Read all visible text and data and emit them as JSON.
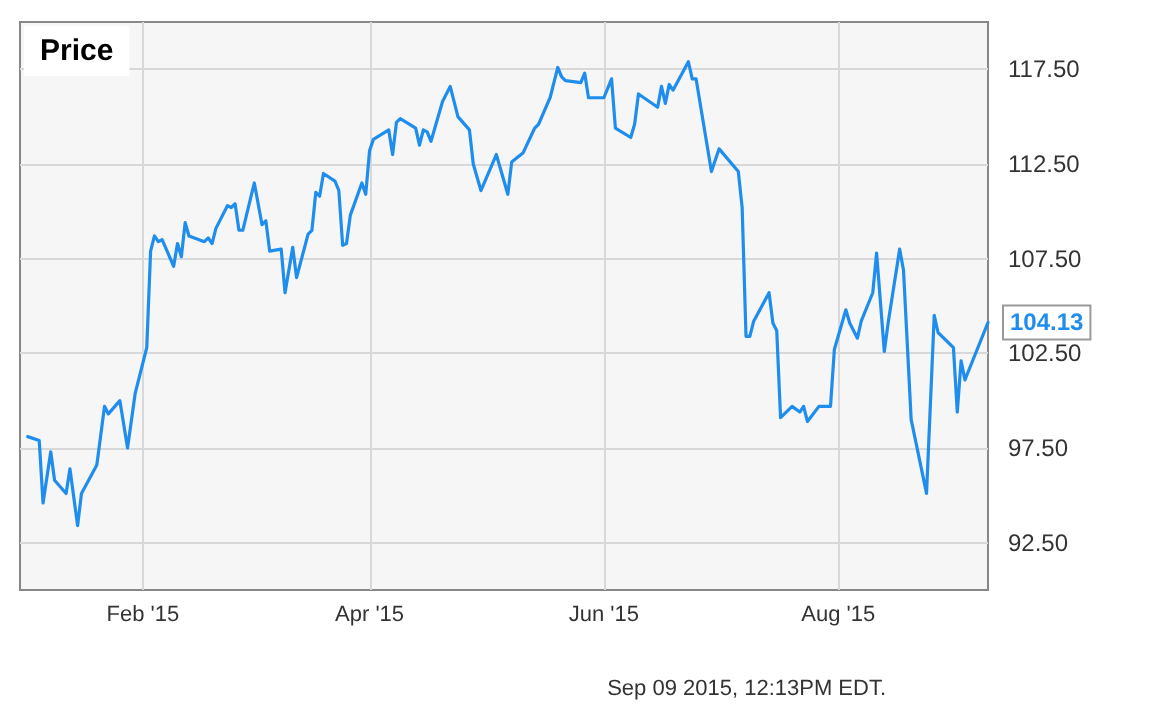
{
  "chart_data": {
    "type": "line",
    "title": "Price",
    "x": [
      "2015-01-02",
      "2015-01-05",
      "2015-01-06",
      "2015-01-08",
      "2015-01-09",
      "2015-01-12",
      "2015-01-13",
      "2015-01-15",
      "2015-01-16",
      "2015-01-20",
      "2015-01-22",
      "2015-01-23",
      "2015-01-26",
      "2015-01-28",
      "2015-01-30",
      "2015-02-02",
      "2015-02-03",
      "2015-02-04",
      "2015-02-05",
      "2015-02-06",
      "2015-02-09",
      "2015-02-10",
      "2015-02-11",
      "2015-02-12",
      "2015-02-13",
      "2015-02-17",
      "2015-02-18",
      "2015-02-19",
      "2015-02-20",
      "2015-02-23",
      "2015-02-24",
      "2015-02-25",
      "2015-02-26",
      "2015-02-27",
      "2015-03-02",
      "2015-03-04",
      "2015-03-05",
      "2015-03-06",
      "2015-03-09",
      "2015-03-10",
      "2015-03-12",
      "2015-03-13",
      "2015-03-16",
      "2015-03-17",
      "2015-03-18",
      "2015-03-19",
      "2015-03-20",
      "2015-03-23",
      "2015-03-24",
      "2015-03-25",
      "2015-03-26",
      "2015-03-27",
      "2015-03-30",
      "2015-03-31",
      "2015-04-01",
      "2015-04-02",
      "2015-04-06",
      "2015-04-07",
      "2015-04-08",
      "2015-04-09",
      "2015-04-13",
      "2015-04-14",
      "2015-04-15",
      "2015-04-16",
      "2015-04-17",
      "2015-04-20",
      "2015-04-22",
      "2015-04-24",
      "2015-04-27",
      "2015-04-28",
      "2015-04-30",
      "2015-05-04",
      "2015-05-07",
      "2015-05-08",
      "2015-05-11",
      "2015-05-14",
      "2015-05-15",
      "2015-05-18",
      "2015-05-20",
      "2015-05-21",
      "2015-05-22",
      "2015-05-26",
      "2015-05-27",
      "2015-05-28",
      "2015-06-01",
      "2015-06-03",
      "2015-06-04",
      "2015-06-08",
      "2015-06-09",
      "2015-06-10",
      "2015-06-15",
      "2015-06-16",
      "2015-06-17",
      "2015-06-18",
      "2015-06-19",
      "2015-06-23",
      "2015-06-24",
      "2015-06-25",
      "2015-06-29",
      "2015-07-01",
      "2015-07-06",
      "2015-07-07",
      "2015-07-08",
      "2015-07-09",
      "2015-07-10",
      "2015-07-14",
      "2015-07-15",
      "2015-07-16",
      "2015-07-17",
      "2015-07-20",
      "2015-07-22",
      "2015-07-23",
      "2015-07-24",
      "2015-07-27",
      "2015-07-30",
      "2015-07-31",
      "2015-08-03",
      "2015-08-04",
      "2015-08-06",
      "2015-08-07",
      "2015-08-10",
      "2015-08-11",
      "2015-08-13",
      "2015-08-14",
      "2015-08-17",
      "2015-08-18",
      "2015-08-20",
      "2015-08-24",
      "2015-08-26",
      "2015-08-27",
      "2015-08-31",
      "2015-09-01",
      "2015-09-02",
      "2015-09-03",
      "2015-09-09"
    ],
    "series": [
      {
        "color": "#1f8ded",
        "values": [
          98.1,
          97.9,
          94.6,
          97.3,
          95.8,
          95.1,
          96.4,
          93.4,
          95.1,
          96.6,
          99.7,
          99.3,
          100.0,
          97.5,
          100.4,
          102.8,
          107.9,
          108.7,
          108.4,
          108.5,
          107.1,
          108.3,
          107.6,
          109.4,
          108.7,
          108.4,
          108.6,
          108.3,
          109.1,
          110.3,
          110.2,
          110.4,
          109.0,
          109.0,
          111.5,
          109.3,
          109.5,
          107.9,
          108.0,
          105.7,
          108.1,
          106.5,
          108.8,
          109.0,
          111.0,
          110.8,
          112.0,
          111.6,
          111.1,
          108.2,
          108.3,
          109.8,
          111.5,
          110.9,
          113.2,
          113.8,
          114.3,
          113.0,
          114.7,
          114.9,
          114.4,
          113.5,
          114.3,
          114.2,
          113.7,
          115.8,
          116.6,
          115.0,
          114.3,
          112.5,
          111.1,
          113.0,
          110.9,
          112.6,
          113.1,
          114.4,
          114.6,
          116.0,
          117.6,
          117.1,
          116.9,
          116.8,
          117.3,
          116.0,
          116.0,
          117.0,
          114.4,
          113.9,
          114.6,
          116.2,
          115.5,
          116.6,
          115.7,
          116.7,
          116.4,
          117.9,
          117.0,
          117.0,
          112.1,
          113.3,
          112.1,
          110.2,
          103.4,
          103.4,
          104.2,
          105.7,
          104.1,
          103.7,
          99.1,
          99.7,
          99.4,
          99.7,
          98.9,
          99.7,
          99.7,
          102.7,
          104.8,
          104.1,
          103.3,
          104.2,
          105.7,
          107.8,
          102.6,
          104.1,
          108.0,
          106.9,
          99.0,
          95.1,
          104.5,
          103.6,
          102.8,
          99.4,
          102.1,
          101.1,
          104.13
        ]
      }
    ],
    "xlim": [
      "2014-12-31",
      "2015-09-09"
    ],
    "xticks": [
      {
        "value": "2015-02-01",
        "label": "Feb '15"
      },
      {
        "value": "2015-04-01",
        "label": "Apr '15"
      },
      {
        "value": "2015-06-01",
        "label": "Jun '15"
      },
      {
        "value": "2015-08-01",
        "label": "Aug '15"
      }
    ],
    "ylim": [
      90,
      120
    ],
    "yticks": [
      {
        "value": 92.5,
        "label": "92.50"
      },
      {
        "value": 97.5,
        "label": "97.50"
      },
      {
        "value": 102.5,
        "label": "102.50"
      },
      {
        "value": 107.5,
        "label": "107.50"
      },
      {
        "value": 112.5,
        "label": "112.50"
      },
      {
        "value": 117.5,
        "label": "117.50"
      }
    ],
    "grid": true,
    "marker": "none",
    "line_style": "solid",
    "annotations": [
      {
        "text": "104.13",
        "x": "2015-09-09",
        "y": 104.13
      },
      "Sep 09 2015, 12:13PM EDT."
    ]
  }
}
